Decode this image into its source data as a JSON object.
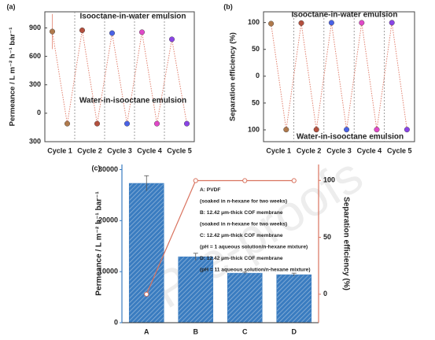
{
  "chart_data": [
    {
      "type": "cycle",
      "panel": "(a)",
      "ylabel": "Permeance / L m⁻² h⁻¹ bar⁻¹",
      "categories": [
        "Cycle 1",
        "Cycle 2",
        "Cycle 3",
        "Cycle 4",
        "Cycle 5"
      ],
      "series": [
        {
          "values": [
            862,
            875,
            845,
            855,
            780
          ],
          "errors": [
            185,
            10,
            10,
            10,
            10
          ]
        },
        {
          "values": [
            -110,
            -110,
            -110,
            -110,
            -110
          ]
        }
      ],
      "point_colors": [
        "#b07a4c",
        "#b4503e",
        "#4a62e6",
        "#e048c8",
        "#8a44e6"
      ],
      "line_color": "#e2806e",
      "ylim": [
        -300,
        1070
      ],
      "yticks": [
        900,
        600,
        300,
        0,
        {
          "value": -300,
          "label": "300"
        }
      ],
      "annotations": [
        "Isooctane-in-water emulsion",
        "Water-in-isooctane emulsion"
      ]
    },
    {
      "type": "cycle",
      "panel": "(b)",
      "ylabel": "Separation efficiency (%)",
      "categories": [
        "Cycle 1",
        "Cycle 2",
        "Cycle 3",
        "Cycle 4",
        "Cycle 5"
      ],
      "series": [
        {
          "values": [
            98,
            99,
            99.6,
            99.5,
            99.7
          ]
        },
        {
          "values": [
            -99.5,
            -99.5,
            -99.5,
            -99.5,
            -99.5
          ]
        }
      ],
      "point_colors": [
        "#b07a4c",
        "#b4503e",
        "#4a62e6",
        "#e048c8",
        "#8a44e6"
      ],
      "line_color": "#e2806e",
      "ylim": [
        -122,
        120
      ],
      "yticks": [
        100,
        50,
        0,
        {
          "value": -50,
          "label": "50"
        },
        {
          "value": -100,
          "label": "100"
        }
      ],
      "annotations": [
        "Isooctane-in-water emulsion",
        "Water-in-isooctane emulsion"
      ]
    },
    {
      "type": "bar",
      "panel": "(c)",
      "ylabel": "Permeance / L m⁻² h⁻¹ bar⁻¹",
      "y2label": "Separation efficiency (%)",
      "categories": [
        "A",
        "B",
        "C",
        "D"
      ],
      "series": [
        {
          "values": [
            27300,
            12900,
            9700,
            9400
          ],
          "errors": [
            1500,
            700,
            200,
            300
          ],
          "color": "#3a7cc0"
        },
        {
          "values": [
            0,
            99.8,
            99.8,
            99.8
          ],
          "color": "#d9735f",
          "axis": "y2"
        }
      ],
      "ylim": [
        0,
        31000
      ],
      "yticks": [
        0,
        10000,
        20000,
        30000
      ],
      "y2lim": [
        -25,
        114
      ],
      "y2ticks": [
        0,
        50,
        100
      ],
      "notes": [
        "A: PVDF",
        "(soaked in n-hexane for two weeks)",
        "B: 12.42 μm-thick COF membrane",
        "(soaked in n-hexane for two weeks)",
        "C: 12.42 μm-thick COF membrane",
        "(pH = 1 aqueous solution/n-hexane mixture)",
        "D: 12.42 μm-thick COF membrane",
        "(pH = 11 aqueous solution/n-hexane mixture)"
      ]
    }
  ],
  "watermark": "Pre-proofs"
}
